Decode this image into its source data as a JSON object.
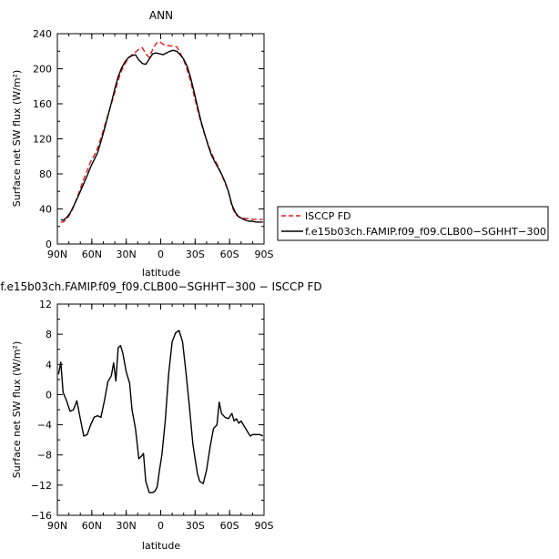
{
  "chart_data": [
    {
      "type": "line",
      "title": "ANN",
      "xlabel": "latitude",
      "ylabel": "Surface net SW flux (W/m²)",
      "xlim": [
        90,
        -90
      ],
      "ylim": [
        0,
        240
      ],
      "xticks": [
        {
          "value": 90,
          "label": "90N"
        },
        {
          "value": 60,
          "label": "60N"
        },
        {
          "value": 30,
          "label": "30N"
        },
        {
          "value": 0,
          "label": "0"
        },
        {
          "value": -30,
          "label": "30S"
        },
        {
          "value": -60,
          "label": "60S"
        },
        {
          "value": -90,
          "label": "90S"
        }
      ],
      "yticks": [
        {
          "value": 0,
          "label": "0"
        },
        {
          "value": 40,
          "label": "40"
        },
        {
          "value": 80,
          "label": "80"
        },
        {
          "value": 120,
          "label": "120"
        },
        {
          "value": 160,
          "label": "160"
        },
        {
          "value": 200,
          "label": "200"
        },
        {
          "value": 240,
          "label": "240"
        }
      ],
      "series": [
        {
          "name": "ISCCP FD",
          "color": "#e41a1c",
          "dash": true,
          "x": [
            87,
            85,
            82,
            79,
            76,
            73,
            70,
            67,
            64,
            61,
            58,
            55,
            52,
            49,
            46,
            43,
            40,
            37,
            34,
            31,
            28,
            25,
            22,
            19,
            16,
            13,
            10,
            7,
            4,
            1,
            -2,
            -5,
            -8,
            -11,
            -14,
            -17,
            -20,
            -23,
            -26,
            -29,
            -32,
            -35,
            -38,
            -41,
            -44,
            -47,
            -50,
            -53,
            -56,
            -59,
            -62,
            -65,
            -68,
            -71,
            -74,
            -77,
            -80,
            -83,
            -86,
            -89
          ],
          "y": [
            25,
            25,
            28,
            34,
            42,
            52,
            63,
            74,
            84,
            94,
            101,
            109,
            121,
            134,
            147,
            160,
            173,
            187,
            198,
            206,
            212,
            216,
            219,
            222,
            224,
            217,
            213,
            222,
            229,
            231,
            228,
            227,
            226,
            226,
            225,
            218,
            210,
            199,
            186,
            170,
            154,
            139,
            126,
            115,
            104,
            96,
            89,
            79,
            70,
            60,
            43,
            34,
            31,
            30,
            29,
            29,
            28,
            28,
            28,
            28
          ]
        },
        {
          "name": "f.e15b03ch.FAMIP.f09_f09.CLB00−SGHHT−300",
          "color": "#000000",
          "dash": false,
          "x": [
            87,
            85,
            82,
            79,
            76,
            73,
            70,
            67,
            64,
            61,
            58,
            55,
            52,
            49,
            46,
            43,
            40,
            37,
            34,
            31,
            28,
            25,
            22,
            19,
            16,
            13,
            10,
            7,
            4,
            1,
            -2,
            -5,
            -8,
            -11,
            -14,
            -17,
            -20,
            -23,
            -26,
            -29,
            -32,
            -35,
            -38,
            -41,
            -44,
            -47,
            -50,
            -53,
            -56,
            -59,
            -62,
            -65,
            -68,
            -71,
            -74,
            -77,
            -80,
            -83,
            -86,
            -89
          ],
          "y": [
            28,
            27,
            30,
            35,
            43,
            51,
            60,
            69,
            78,
            88,
            96,
            104,
            117,
            131,
            146,
            161,
            177,
            191,
            201,
            208,
            213,
            215,
            216,
            210,
            206,
            205,
            211,
            217,
            218,
            217,
            216,
            218,
            220,
            221,
            220,
            216,
            211,
            203,
            190,
            174,
            157,
            141,
            127,
            114,
            102,
            94,
            87,
            80,
            71,
            60,
            45,
            36,
            31,
            29,
            27,
            26,
            26,
            25,
            25,
            25
          ]
        }
      ],
      "legend": {
        "placement": "right"
      }
    },
    {
      "type": "line",
      "title": "f.e15b03ch.FAMIP.f09_f09.CLB00−SGHHT−300  −  ISCCP FD",
      "xlabel": "latitude",
      "ylabel": "Surface net SW flux (W/m²)",
      "xlim": [
        90,
        -90
      ],
      "ylim": [
        -16,
        12
      ],
      "xticks": [
        {
          "value": 90,
          "label": "90N"
        },
        {
          "value": 60,
          "label": "60N"
        },
        {
          "value": 30,
          "label": "30N"
        },
        {
          "value": 0,
          "label": "0"
        },
        {
          "value": -30,
          "label": "30S"
        },
        {
          "value": -60,
          "label": "60S"
        },
        {
          "value": -90,
          "label": "90S"
        }
      ],
      "yticks": [
        {
          "value": -16,
          "label": "−16"
        },
        {
          "value": -12,
          "label": "−12"
        },
        {
          "value": -8,
          "label": "−8"
        },
        {
          "value": -4,
          "label": "−4"
        },
        {
          "value": 0,
          "label": "0"
        },
        {
          "value": 4,
          "label": "4"
        },
        {
          "value": 8,
          "label": "8"
        },
        {
          "value": 12,
          "label": "12"
        }
      ],
      "series": [
        {
          "name": "",
          "color": "#000000",
          "dash": false,
          "x": [
            89,
            87,
            85,
            82,
            79,
            76,
            73,
            70,
            67,
            64,
            61,
            58,
            55,
            52,
            49,
            46,
            43,
            41,
            39,
            37,
            35,
            33,
            30,
            27,
            25,
            22,
            19,
            17,
            15,
            13,
            10,
            7,
            5,
            3,
            1,
            -1,
            -4,
            -7,
            -10,
            -13,
            -16,
            -19,
            -22,
            -25,
            -28,
            -30,
            -32,
            -34,
            -37,
            -40,
            -43,
            -46,
            -49,
            -51,
            -53,
            -56,
            -59,
            -62,
            -64,
            -66,
            -68,
            -70,
            -72,
            -74,
            -76,
            -78,
            -80,
            -82,
            -84,
            -86,
            -88,
            -89
          ],
          "y": [
            2.7,
            4.3,
            0.3,
            -0.8,
            -2.2,
            -2.0,
            -0.8,
            -3.2,
            -5.5,
            -5.3,
            -4.0,
            -3.0,
            -2.8,
            -3.0,
            -0.8,
            1.7,
            2.5,
            4.2,
            1.8,
            6.2,
            6.5,
            5.5,
            3.0,
            1.5,
            -2.0,
            -4.5,
            -8.5,
            -8.2,
            -7.8,
            -11.5,
            -13.0,
            -13.0,
            -12.8,
            -12.2,
            -10.0,
            -8.0,
            -3.5,
            2.8,
            7.0,
            8.2,
            8.5,
            7.0,
            3.0,
            -1.5,
            -6.5,
            -8.5,
            -10.5,
            -11.5,
            -11.8,
            -10.0,
            -7.0,
            -4.5,
            -4.0,
            -1.0,
            -2.5,
            -3.0,
            -3.2,
            -2.5,
            -3.5,
            -3.2,
            -3.8,
            -3.5,
            -4.0,
            -4.5,
            -5.0,
            -5.5,
            -5.3,
            -5.3,
            -5.3,
            -5.3,
            -5.4,
            -5.5
          ]
        }
      ]
    }
  ]
}
